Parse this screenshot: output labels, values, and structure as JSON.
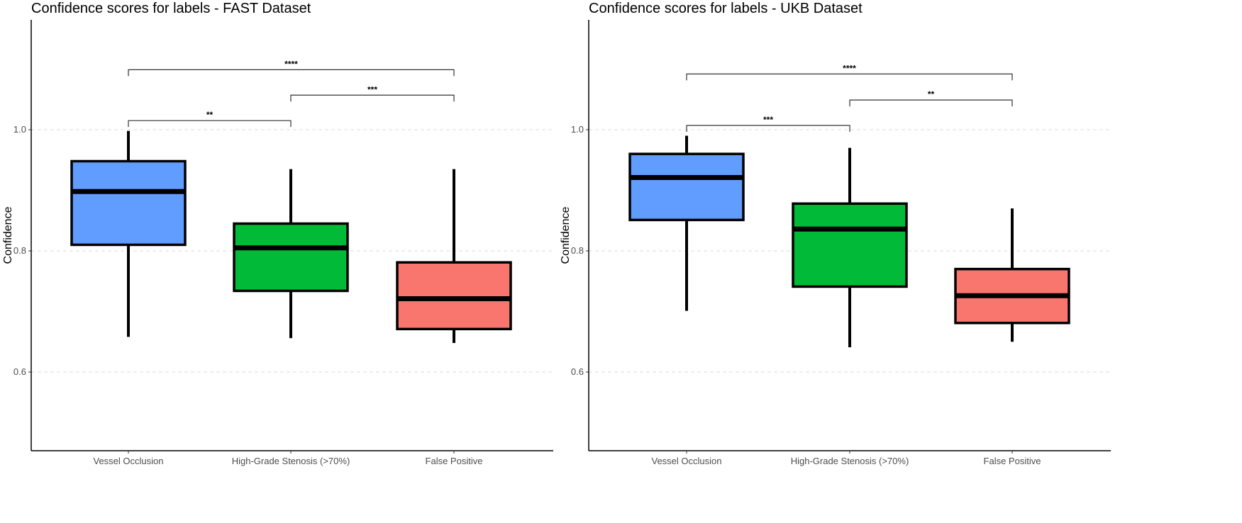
{
  "chart_data": [
    {
      "type": "box",
      "title": "Confidence scores for labels - FAST Dataset",
      "xlabel": "",
      "ylabel": "Confidence",
      "ylim": [
        0.45,
        1.18
      ],
      "yticks": [
        0.6,
        0.8,
        1.0
      ],
      "ytick_labels": [
        "0.6",
        "0.8",
        "1.0"
      ],
      "grid": "horizontal-dashed",
      "categories": [
        "Vessel Occlusion",
        "High-Grade Stenosis (>70%)",
        "False Positive"
      ],
      "colors": [
        "#619CFF",
        "#00BA38",
        "#F8766D"
      ],
      "boxes": [
        {
          "whisker_low": 0.658,
          "q1": 0.81,
          "median": 0.898,
          "q3": 0.948,
          "whisker_high": 0.998
        },
        {
          "whisker_low": 0.656,
          "q1": 0.734,
          "median": 0.805,
          "q3": 0.845,
          "whisker_high": 0.935
        },
        {
          "whisker_low": 0.648,
          "q1": 0.671,
          "median": 0.721,
          "q3": 0.781,
          "whisker_high": 0.935
        }
      ],
      "significance": [
        {
          "from": 0,
          "to": 1,
          "y": 1.015,
          "label": "**"
        },
        {
          "from": 1,
          "to": 2,
          "y": 1.057,
          "label": "***"
        },
        {
          "from": 0,
          "to": 2,
          "y": 1.099,
          "label": "****"
        }
      ]
    },
    {
      "type": "box",
      "title": "Confidence scores for labels - UKB Dataset",
      "xlabel": "",
      "ylabel": "Confidence",
      "ylim": [
        0.45,
        1.18
      ],
      "yticks": [
        0.6,
        0.8,
        1.0
      ],
      "ytick_labels": [
        "0.6",
        "0.8",
        "1.0"
      ],
      "grid": "horizontal-dashed",
      "categories": [
        "Vessel Occlusion",
        "High-Grade Stenosis (>70%)",
        "False Positive"
      ],
      "colors": [
        "#619CFF",
        "#00BA38",
        "#F8766D"
      ],
      "boxes": [
        {
          "whisker_low": 0.701,
          "q1": 0.851,
          "median": 0.921,
          "q3": 0.96,
          "whisker_high": 0.99
        },
        {
          "whisker_low": 0.641,
          "q1": 0.741,
          "median": 0.836,
          "q3": 0.878,
          "whisker_high": 0.97
        },
        {
          "whisker_low": 0.65,
          "q1": 0.681,
          "median": 0.726,
          "q3": 0.77,
          "whisker_high": 0.87
        }
      ],
      "significance": [
        {
          "from": 0,
          "to": 1,
          "y": 1.007,
          "label": "***"
        },
        {
          "from": 1,
          "to": 2,
          "y": 1.049,
          "label": "**"
        },
        {
          "from": 0,
          "to": 2,
          "y": 1.092,
          "label": "****"
        }
      ]
    }
  ]
}
